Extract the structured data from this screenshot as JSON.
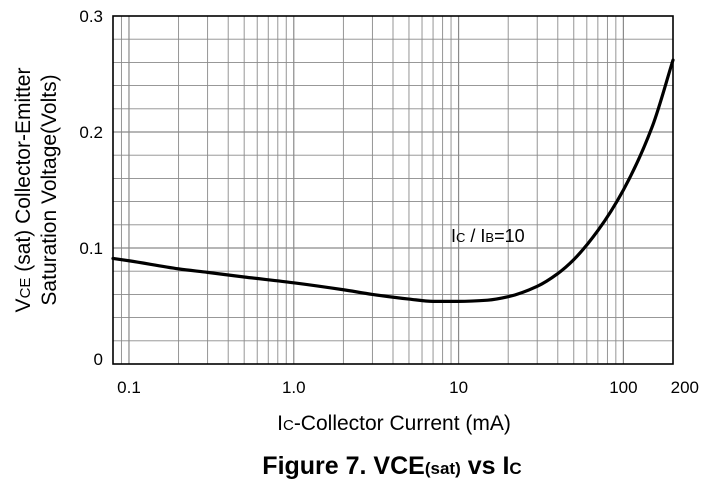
{
  "chart_data": {
    "type": "line",
    "x_scale": "log",
    "y_scale": "linear",
    "xlim": [
      0.08,
      200
    ],
    "ylim": [
      0,
      0.3
    ],
    "grid": true,
    "x_ticks": [
      {
        "value": 0.1,
        "label": "0.1"
      },
      {
        "value": 1,
        "label": "1.0"
      },
      {
        "value": 10,
        "label": "10"
      },
      {
        "value": 100,
        "label": "100"
      },
      {
        "value": 200,
        "label": "200"
      }
    ],
    "y_ticks": [
      {
        "value": 0,
        "label": "0"
      },
      {
        "value": 0.1,
        "label": "0.1"
      },
      {
        "value": 0.2,
        "label": "0.2"
      },
      {
        "value": 0.3,
        "label": "0.3"
      }
    ],
    "xlabel": {
      "main_prefix": "I",
      "main_sub": "C",
      "main_rest": "-Collector Current  (mA)"
    },
    "ylabel": {
      "line1_prefix": "V",
      "line1_sub": "CE",
      "line1_rest": " (sat) Collector-Emitter",
      "line2": "Saturation Voltage(Volts)"
    },
    "annotation": {
      "i1": "I",
      "s1": "C",
      "mid": " / I",
      "s2": "B",
      "rest": "=10"
    },
    "caption": {
      "prefix": "Figure 7. VCE",
      "sub1": "(sat)",
      "mid": " vs I",
      "sub2": "C"
    },
    "series": [
      {
        "x": [
          0.08,
          0.1,
          0.2,
          0.3,
          0.5,
          1,
          2,
          3,
          5,
          7,
          8,
          10,
          15,
          20,
          30,
          40,
          50,
          70,
          100,
          150,
          200
        ],
        "y": [
          0.091,
          0.089,
          0.082,
          0.079,
          0.075,
          0.07,
          0.064,
          0.06,
          0.056,
          0.054,
          0.054,
          0.054,
          0.055,
          0.058,
          0.067,
          0.078,
          0.09,
          0.115,
          0.15,
          0.205,
          0.262
        ]
      }
    ]
  }
}
